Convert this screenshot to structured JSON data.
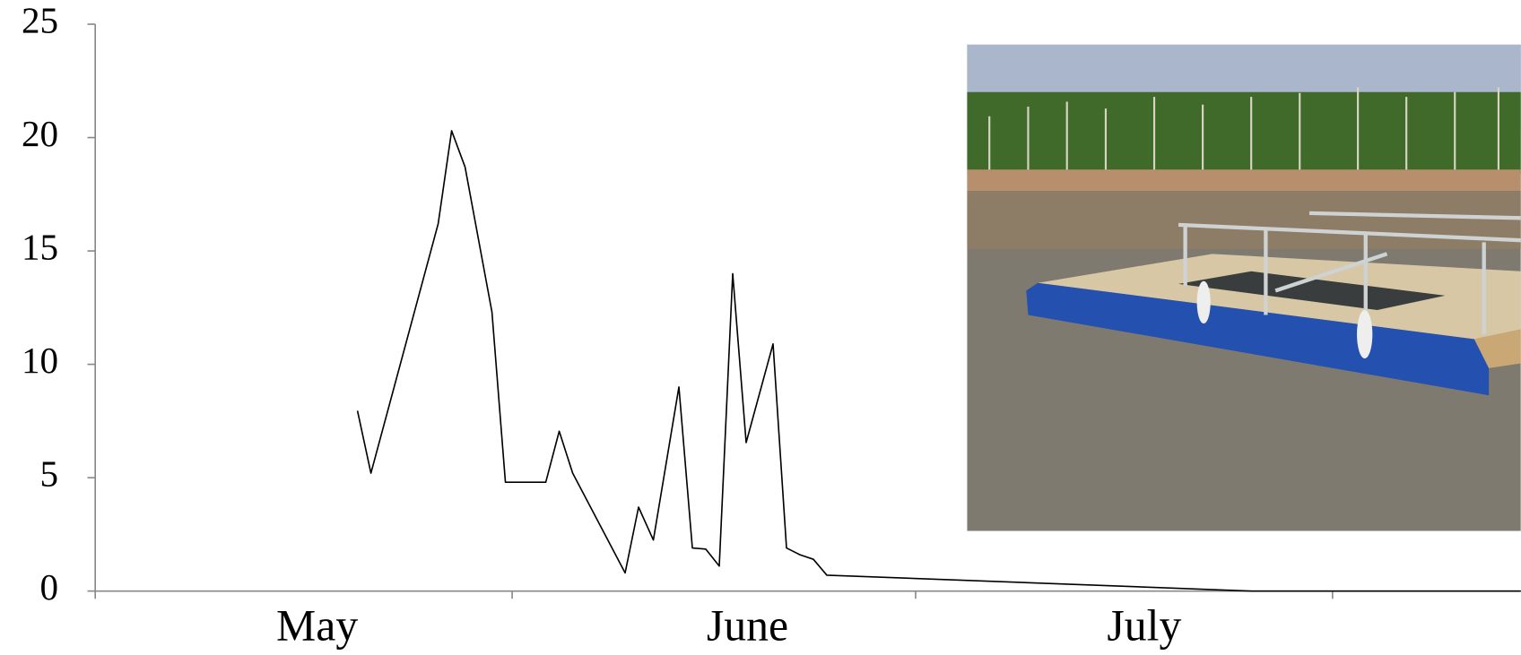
{
  "chart_data": {
    "type": "line",
    "xlim": [
      0,
      106
    ],
    "xticks": [
      0,
      31,
      61,
      92
    ],
    "month_labels": [
      {
        "value": 16.5,
        "label": "May"
      },
      {
        "value": 48.5,
        "label": "June"
      },
      {
        "value": 78,
        "label": "July"
      }
    ],
    "ylim": [
      0,
      25
    ],
    "yticks": [
      0,
      5,
      10,
      15,
      20,
      25
    ],
    "grid": false,
    "series": [
      {
        "color": "#000000",
        "x": [
          19.5,
          20.5,
          25.5,
          26.5,
          27.5,
          29.5,
          30.5,
          33.5,
          34.5,
          35.5,
          39.4,
          40.4,
          41.5,
          43.4,
          44.4,
          45.4,
          46.4,
          47.4,
          48.4,
          50.4,
          51.4,
          52.4,
          53.4,
          54.4,
          86,
          106
        ],
        "values": [
          7.95,
          5.2,
          16.2,
          20.3,
          18.7,
          12.3,
          4.8,
          4.8,
          7.05,
          5.2,
          0.8,
          3.7,
          2.25,
          9.0,
          1.9,
          1.85,
          1.1,
          14.0,
          6.55,
          10.9,
          1.9,
          1.6,
          1.4,
          0.7,
          0,
          0
        ]
      }
    ]
  }
}
